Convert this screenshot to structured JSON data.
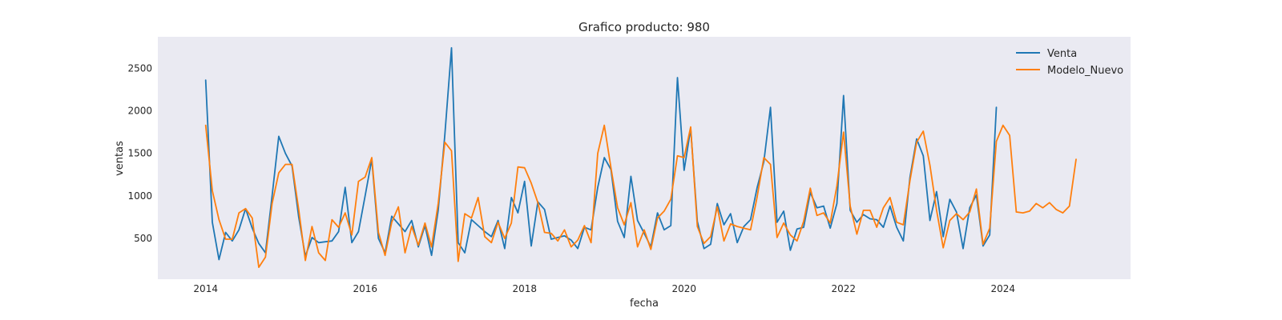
{
  "chart_data": {
    "type": "line",
    "title": "Grafico producto: 980",
    "xlabel": "fecha",
    "ylabel": "ventas",
    "xlim": [
      2013.4,
      2025.6
    ],
    "ylim": [
      20,
      2870
    ],
    "xticks": [
      2014,
      2016,
      2018,
      2020,
      2022,
      2024
    ],
    "xtick_labels": [
      "2014",
      "2016",
      "2018",
      "2020",
      "2022",
      "2024"
    ],
    "yticks": [
      500,
      1000,
      1500,
      2000,
      2500
    ],
    "ytick_labels": [
      "500",
      "1000",
      "1500",
      "2000",
      "2500"
    ],
    "grid": false,
    "legend": "top-right",
    "background": "#eaeaf2",
    "x_start": "2014-01",
    "x_step": "1 month",
    "series": [
      {
        "name": "Venta",
        "color": "#1f77b4",
        "values": [
          2360,
          690,
          250,
          570,
          470,
          600,
          850,
          620,
          440,
          330,
          1000,
          1700,
          1500,
          1350,
          750,
          290,
          510,
          450,
          460,
          470,
          580,
          1100,
          450,
          580,
          1000,
          1430,
          500,
          330,
          760,
          670,
          580,
          710,
          400,
          650,
          300,
          830,
          1720,
          2740,
          450,
          330,
          720,
          650,
          580,
          520,
          710,
          380,
          980,
          800,
          1170,
          410,
          930,
          840,
          490,
          510,
          530,
          480,
          380,
          630,
          600,
          1100,
          1450,
          1310,
          700,
          510,
          1230,
          710,
          560,
          400,
          800,
          600,
          650,
          2390,
          1300,
          1790,
          700,
          380,
          430,
          910,
          660,
          790,
          450,
          640,
          720,
          1100,
          1400,
          2040,
          690,
          820,
          360,
          610,
          630,
          1040,
          860,
          880,
          620,
          910,
          2180,
          830,
          690,
          780,
          730,
          720,
          630,
          880,
          630,
          470,
          1220,
          1670,
          1470,
          710,
          1050,
          520,
          960,
          810,
          380,
          860,
          1010,
          410,
          540,
          2040
        ],
        "x_start": "2014-01"
      },
      {
        "name": "Modelo_Nuevo",
        "color": "#ff7f0e",
        "values": [
          1830,
          1060,
          720,
          490,
          490,
          800,
          850,
          740,
          160,
          280,
          910,
          1270,
          1370,
          1370,
          840,
          240,
          640,
          330,
          240,
          720,
          630,
          800,
          540,
          1170,
          1220,
          1450,
          570,
          300,
          690,
          870,
          330,
          640,
          420,
          680,
          400,
          910,
          1630,
          1530,
          230,
          790,
          740,
          980,
          520,
          450,
          690,
          500,
          680,
          1340,
          1330,
          1150,
          920,
          570,
          560,
          470,
          600,
          400,
          480,
          650,
          450,
          1500,
          1830,
          1330,
          860,
          660,
          920,
          400,
          600,
          370,
          740,
          820,
          960,
          1470,
          1450,
          1810,
          640,
          440,
          520,
          870,
          470,
          670,
          640,
          620,
          600,
          990,
          1450,
          1370,
          510,
          680,
          540,
          470,
          700,
          1090,
          770,
          800,
          680,
          1120,
          1750,
          880,
          550,
          830,
          830,
          630,
          860,
          980,
          690,
          660,
          1180,
          1630,
          1760,
          1360,
          830,
          390,
          710,
          790,
          720,
          810,
          1080,
          430,
          620,
          1640,
          1830,
          1710,
          810,
          800,
          820,
          910,
          860,
          920,
          840,
          800,
          880,
          1430
        ],
        "x_start": "2014-01"
      }
    ]
  }
}
